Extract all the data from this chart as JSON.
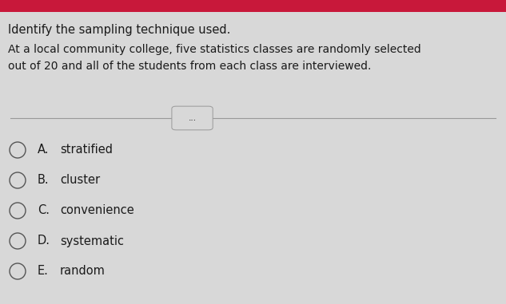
{
  "background_color": "#d8d8d8",
  "top_bar_color": "#c8183a",
  "title_text": "Identify the sampling technique used.",
  "body_text": "At a local community college, five statistics classes are randomly selected\nout of 20 and all of the students from each class are interviewed.",
  "ellipsis_text": "...",
  "options": [
    {
      "label": "A.",
      "text": "stratified"
    },
    {
      "label": "B.",
      "text": "cluster"
    },
    {
      "label": "C.",
      "text": "convenience"
    },
    {
      "label": "D.",
      "text": "systematic"
    },
    {
      "label": "E.",
      "text": "random"
    }
  ],
  "title_fontsize": 10.5,
  "body_fontsize": 10.0,
  "option_fontsize": 10.5,
  "text_color": "#1a1a1a",
  "circle_edge_color": "#555555",
  "divider_color": "#999999"
}
